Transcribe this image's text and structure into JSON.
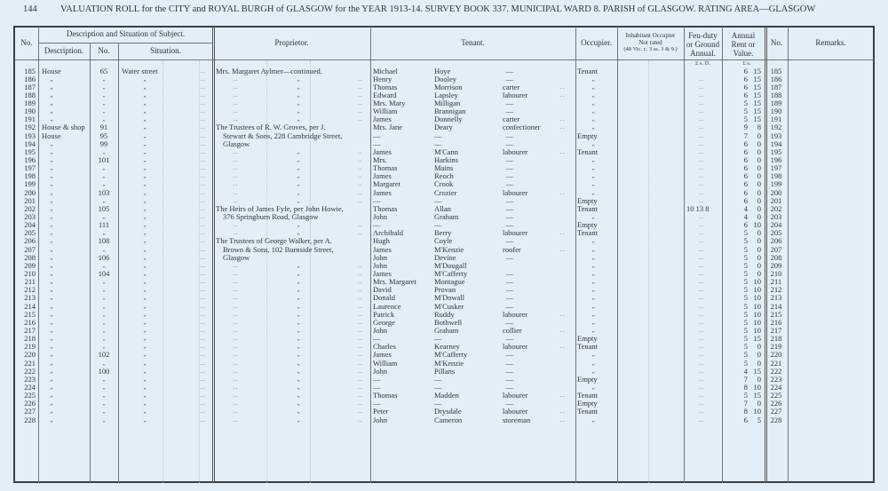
{
  "page_header": {
    "page_number": "144",
    "title": "VALUATION ROLL for the CITY and ROYAL BURGH of GLASGOW for the YEAR 1913-14.   SURVEY BOOK 337.   MUNICIPAL WARD 8.   PARISH of GLASGOW.   RATING AREA—GLASGOW"
  },
  "columns": {
    "no": "No.",
    "subject_group": "Description and Situation of Subject.",
    "description": "Description.",
    "subject_no": "No.",
    "situation": "Situation.",
    "proprietor": "Proprietor.",
    "tenant": "Tenant.",
    "occupier": "Occupier.",
    "inhabitant_1": "Inhabitant Occupier",
    "inhabitant_2": "Not rated",
    "inhabitant_3": "(48 Vic. c. 3 ss. 3 & 9.)",
    "feu_1": "Feu-duty",
    "feu_2": "or Ground",
    "feu_3": "Annual.",
    "rent_1": "Annual",
    "rent_2": "Rent or",
    "rent_3": "Value.",
    "no_right": "No.",
    "remarks": "Remarks.",
    "feu_units": "£  s.  D.",
    "rent_units": "£  s."
  },
  "symbols": {
    "ditto": "„",
    "dash": "—",
    "leader": ".."
  },
  "colors": {
    "paper": "#e3eff8",
    "ink": "#2e3338"
  },
  "row_fields": [
    "no",
    "description",
    "subject_no",
    "situation",
    "proprietor",
    "tenant_first",
    "tenant_last",
    "occupation",
    "occupier",
    "feu",
    "rent_pounds",
    "rent_shillings"
  ],
  "rows": [
    [
      "185",
      "House",
      "65",
      "Water street",
      "Mrs. Margaret Aylmer—continued.",
      "Michael",
      "Hoye",
      "—",
      "Tenant",
      "",
      "6",
      "15"
    ],
    [
      "186",
      "„",
      "„",
      "„",
      "„",
      "Henry",
      "Dooley",
      "—",
      "„",
      "..",
      "6",
      "15"
    ],
    [
      "187",
      "„",
      "„",
      "„",
      "„",
      "Thomas",
      "Morrison",
      "carter",
      "„",
      "..",
      "6",
      "15"
    ],
    [
      "188",
      "„",
      "„",
      "„",
      "„",
      "Edward",
      "Lapsley",
      "labourer",
      "„",
      "..",
      "6",
      "15"
    ],
    [
      "189",
      "„",
      "„",
      "„",
      "„",
      "Mrs. Mary",
      "Milligan",
      "—",
      "„",
      "..",
      "5",
      "15"
    ],
    [
      "190",
      "„",
      "„",
      "„",
      "„",
      "William",
      "Brannigan",
      "—",
      "„",
      "..",
      "5",
      "15"
    ],
    [
      "191",
      "„",
      "„",
      "„",
      "„",
      "James",
      "Donnelly",
      "carter",
      "„",
      "..",
      "5",
      "15"
    ],
    [
      "192",
      "House & shop",
      "91",
      "„",
      "The Trustees of R. W. Groves, per J.",
      "Mrs. Jane",
      "Deary",
      "confectioner",
      "„",
      "..",
      "9",
      "8"
    ],
    [
      "193",
      "House",
      "95",
      "„",
      "Stewart & Sons, 228 Cambridge Street,",
      "—",
      "—",
      "—",
      "Empty",
      "..",
      "7",
      "0"
    ],
    [
      "194",
      "„",
      "99",
      "„",
      "Glasgow",
      "—",
      "—",
      "—",
      "„",
      "..",
      "6",
      "0"
    ],
    [
      "195",
      "„",
      "„",
      "„",
      "„",
      "James",
      "M'Cann",
      "labourer",
      "Tenant",
      "..",
      "6",
      "0"
    ],
    [
      "196",
      "„",
      "101",
      "„",
      "„",
      "Mrs.",
      "Harkins",
      "—",
      "„",
      "..",
      "6",
      "0"
    ],
    [
      "197",
      "„",
      "„",
      "„",
      "„",
      "Thomas",
      "Mains",
      "—",
      "„",
      "..",
      "6",
      "0"
    ],
    [
      "198",
      "„",
      "„",
      "„",
      "„",
      "James",
      "Reoch",
      "—",
      "„",
      "..",
      "6",
      "0"
    ],
    [
      "199",
      "„",
      "„",
      "„",
      "„",
      "Margaret",
      "Crook",
      "—",
      "„",
      "..",
      "6",
      "0"
    ],
    [
      "200",
      "„",
      "103",
      "„",
      "„",
      "James",
      "Crozier",
      "labourer",
      "„",
      "..",
      "6",
      "0"
    ],
    [
      "201",
      "„",
      "„",
      "„",
      "„",
      "—",
      "—",
      "—",
      "Empty",
      "..",
      "6",
      "0"
    ],
    [
      "202",
      "„",
      "105",
      "„",
      "The Heirs of James Fyfe, per John Howie,",
      "Thomas",
      "Allan",
      "—",
      "Tenant",
      "10  13  8",
      "4",
      "0"
    ],
    [
      "203",
      "„",
      "„",
      "„",
      "376 Springburn Road, Glasgow",
      "John",
      "Graham",
      "—",
      "„",
      "..",
      "4",
      "0"
    ],
    [
      "204",
      "„",
      "111",
      "„",
      "„",
      "—",
      "—",
      "—",
      "Empty",
      "..",
      "6",
      "10"
    ],
    [
      "205",
      "„",
      "„",
      "„",
      "„",
      "Archibald",
      "Berry",
      "labourer",
      "Tenant",
      "..",
      "5",
      "0"
    ],
    [
      "206",
      "„",
      "108",
      "„",
      "The Trustees of George Walker, per A.",
      "Hugh",
      "Coyle",
      "—",
      "„",
      "..",
      "5",
      "0"
    ],
    [
      "207",
      "„",
      "„",
      "„",
      "Brown & Sons, 102 Burnside Street,",
      "James",
      "M'Kenzie",
      "roofer",
      "„",
      "..",
      "5",
      "0"
    ],
    [
      "208",
      "„",
      "106",
      "„",
      "Glasgow",
      "John",
      "Devine",
      "—",
      "„",
      "..",
      "5",
      "0"
    ],
    [
      "209",
      "„",
      "„",
      "„",
      "„",
      "John",
      "M'Dougall",
      "",
      "„",
      "..",
      "5",
      "0"
    ],
    [
      "210",
      "„",
      "104",
      "„",
      "„",
      "James",
      "M'Cafferty",
      "—",
      "„",
      "..",
      "5",
      "0"
    ],
    [
      "211",
      "„",
      "„",
      "„",
      "„",
      "Mrs. Margaret",
      "Montague",
      "—",
      "„",
      "..",
      "5",
      "10"
    ],
    [
      "212",
      "„",
      "„",
      "„",
      "„",
      "David",
      "Provan",
      "—",
      "„",
      "..",
      "5",
      "10"
    ],
    [
      "213",
      "„",
      "„",
      "„",
      "„",
      "Donald",
      "M'Dowall",
      "—",
      "„",
      "..",
      "5",
      "10"
    ],
    [
      "214",
      "„",
      "„",
      "„",
      "„",
      "Laurence",
      "M'Cusker",
      "—",
      "„",
      "..",
      "5",
      "10"
    ],
    [
      "215",
      "„",
      "„",
      "„",
      "„",
      "Patrick",
      "Ruddy",
      "labourer",
      "„",
      "..",
      "5",
      "10"
    ],
    [
      "216",
      "„",
      "„",
      "„",
      "„",
      "George",
      "Bothwell",
      "—",
      "„",
      "..",
      "5",
      "10"
    ],
    [
      "217",
      "„",
      "„",
      "„",
      "„",
      "John",
      "Graham",
      "collier",
      "„",
      "..",
      "5",
      "10"
    ],
    [
      "218",
      "„",
      "„",
      "„",
      "„",
      "—",
      "—",
      "—",
      "Empty",
      "..",
      "5",
      "15"
    ],
    [
      "219",
      "„",
      "„",
      "„",
      "„",
      "Charles",
      "Kearney",
      "labourer",
      "Tenant",
      "..",
      "5",
      "0"
    ],
    [
      "220",
      "„",
      "102",
      "„",
      "„",
      "James",
      "M'Cafferty",
      "—",
      "„",
      "..",
      "5",
      "0"
    ],
    [
      "221",
      "„",
      "„",
      "„",
      "„",
      "William",
      "M'Kenzie",
      "—",
      "„",
      "..",
      "5",
      "0"
    ],
    [
      "222",
      "„",
      "100",
      "„",
      "„",
      "John",
      "Pillans",
      "—",
      "„",
      "..",
      "4",
      "15"
    ],
    [
      "223",
      "„",
      "„",
      "„",
      "„",
      "—",
      "—",
      "—",
      "Empty",
      "..",
      "7",
      "0"
    ],
    [
      "224",
      "„",
      "„",
      "„",
      "„",
      "—",
      "—",
      "—",
      "„",
      "..",
      "8",
      "10"
    ],
    [
      "225",
      "„",
      "„",
      "„",
      "„",
      "Thomas",
      "Madden",
      "labourer",
      "Tenant",
      "..",
      "5",
      "15"
    ],
    [
      "226",
      "„",
      "„",
      "„",
      "„",
      "—",
      "—",
      "—",
      "Empty",
      "..",
      "7",
      "0"
    ],
    [
      "227",
      "„",
      "„",
      "„",
      "„",
      "Peter",
      "Drysdale",
      "labourer",
      "Tenant",
      "..",
      "8",
      "10"
    ],
    [
      "228",
      "„",
      "„",
      "„",
      "„",
      "John",
      "Cameron",
      "storeman",
      "„",
      "..",
      "6",
      "5"
    ]
  ]
}
